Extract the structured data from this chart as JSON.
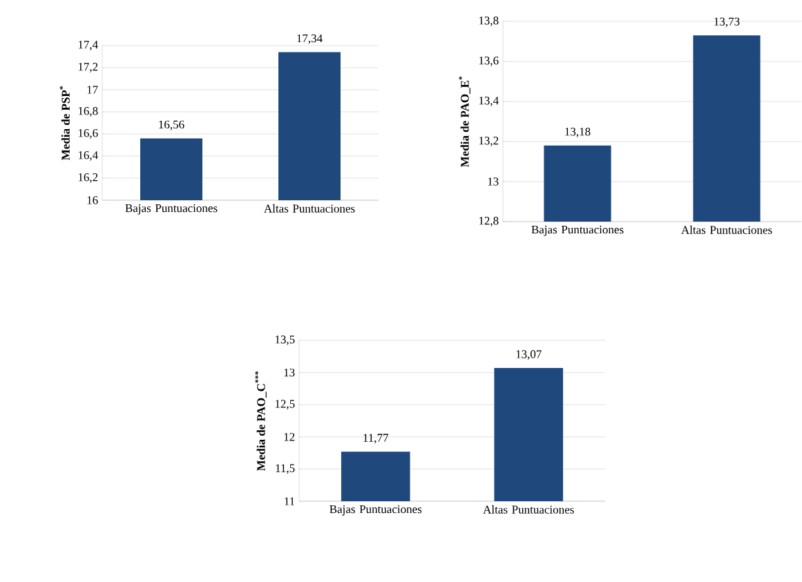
{
  "chart_data": [
    {
      "type": "bar",
      "ylabel": "Media de PSP$^{*}$",
      "categories": [
        "Bajas Puntuaciones",
        "Altas Puntuaciones"
      ],
      "values": [
        16.56,
        17.34
      ],
      "value_labels": [
        "16,56",
        "17,34"
      ],
      "color": "#1f497d",
      "ylim": [
        16,
        17.4
      ],
      "yticks": [
        {
          "value": 16,
          "label": "16"
        },
        {
          "value": 16.2,
          "label": "16,2"
        },
        {
          "value": 16.4,
          "label": "16,4"
        },
        {
          "value": 16.6,
          "label": "16,6"
        },
        {
          "value": 16.8,
          "label": "16,8"
        },
        {
          "value": 17,
          "label": "17"
        },
        {
          "value": 17.2,
          "label": "17,2"
        },
        {
          "value": 17.4,
          "label": "17,4"
        }
      ],
      "grid": "y"
    },
    {
      "type": "bar",
      "ylabel": "Media de PAO_E$^{*}$",
      "categories": [
        "Bajas Puntuaciones",
        "Altas Puntuaciones"
      ],
      "values": [
        13.18,
        13.73
      ],
      "value_labels": [
        "13,18",
        "13,73"
      ],
      "color": "#1f497d",
      "ylim": [
        12.8,
        13.8
      ],
      "yticks": [
        {
          "value": 12.8,
          "label": "12,8"
        },
        {
          "value": 13,
          "label": "13"
        },
        {
          "value": 13.2,
          "label": "13,2"
        },
        {
          "value": 13.4,
          "label": "13,4"
        },
        {
          "value": 13.6,
          "label": "13,6"
        },
        {
          "value": 13.8,
          "label": "13,8"
        }
      ],
      "grid": "y"
    },
    {
      "type": "bar",
      "ylabel": "Media de PAO_C$^{***}$",
      "categories": [
        "Bajas Puntuaciones",
        "Altas Puntuaciones"
      ],
      "values": [
        11.77,
        13.07
      ],
      "value_labels": [
        "11,77",
        "13,07"
      ],
      "color": "#1f497d",
      "ylim": [
        11,
        13.5
      ],
      "yticks": [
        {
          "value": 11,
          "label": "11"
        },
        {
          "value": 11.5,
          "label": "11,5"
        },
        {
          "value": 12,
          "label": "12"
        },
        {
          "value": 12.5,
          "label": "12,5"
        },
        {
          "value": 13,
          "label": "13"
        },
        {
          "value": 13.5,
          "label": "13,5"
        }
      ],
      "grid": "y"
    }
  ]
}
